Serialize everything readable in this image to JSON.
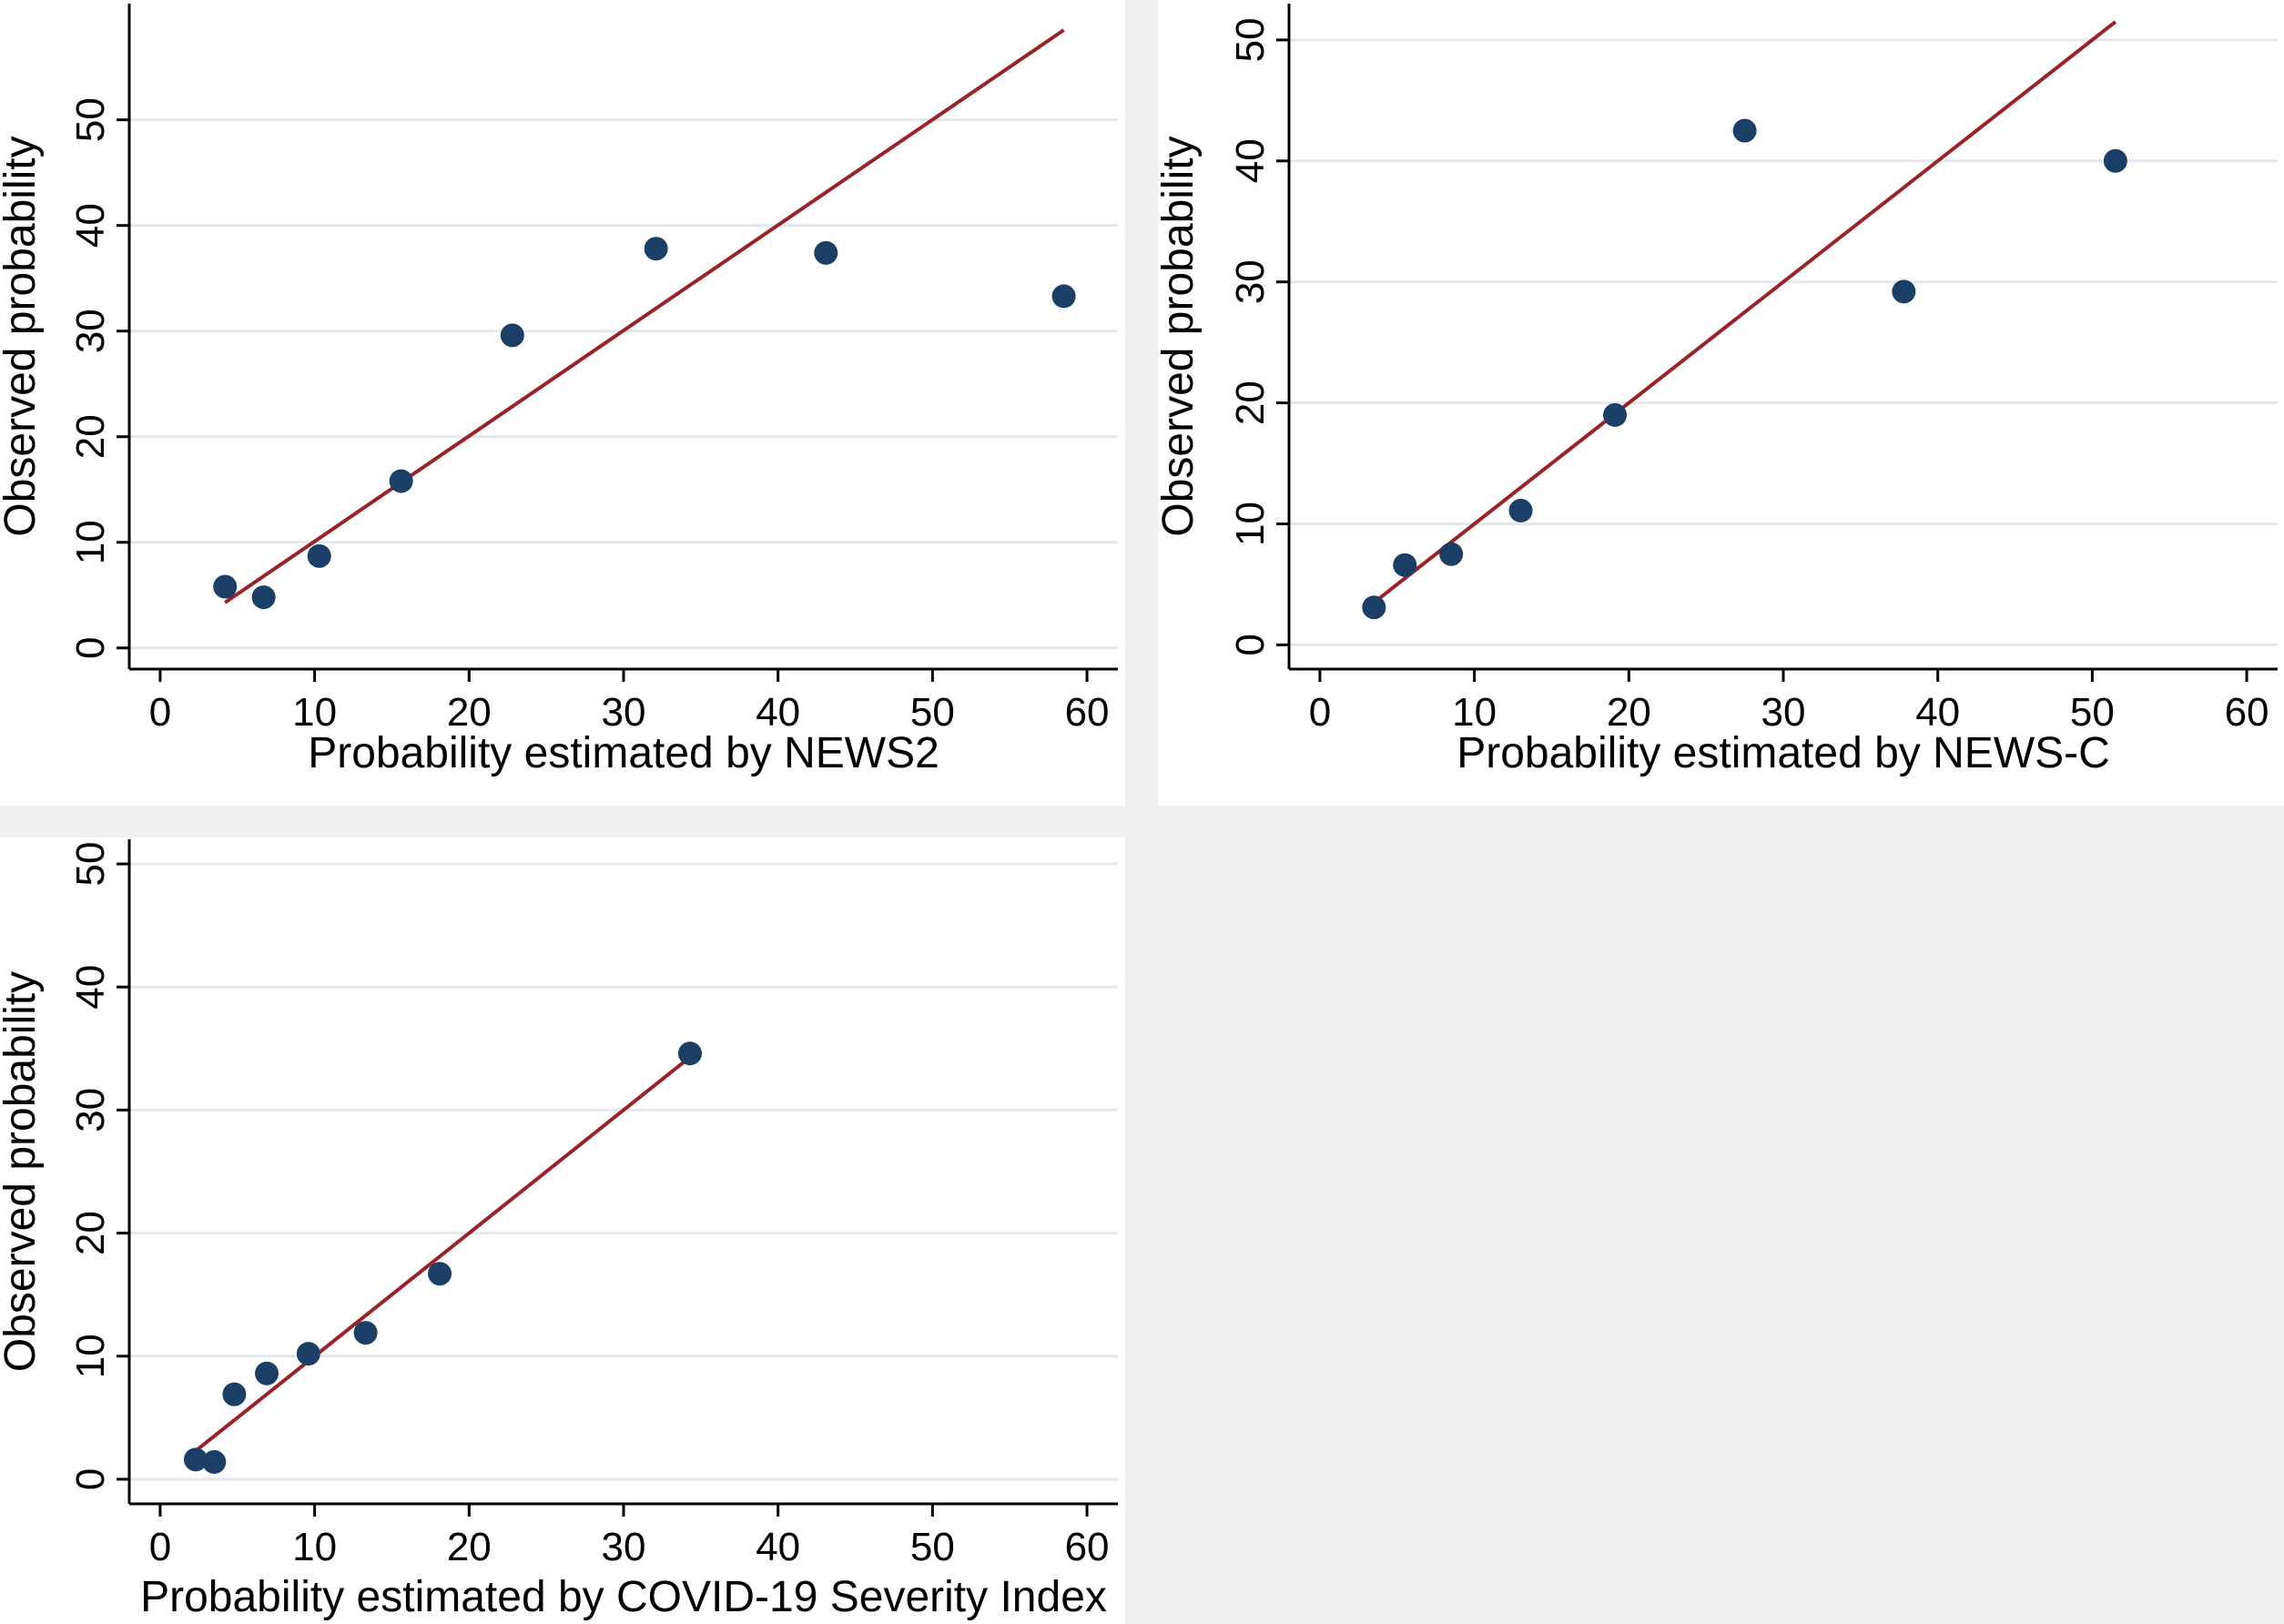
{
  "colors": {
    "panel_background": "#ffffff",
    "figure_background": "#efefef",
    "grid": "#e3e8ec",
    "axis": "#000000",
    "marker": "#1b3f66",
    "fit_line": "#9b2226"
  },
  "chart_data": [
    {
      "type": "scatter",
      "title": "",
      "xlabel": "Probability estimated by NEWS2",
      "ylabel": "Observed probability",
      "xlim": [
        -2,
        62
      ],
      "ylim": [
        -2,
        61
      ],
      "xticks": [
        0,
        10,
        20,
        30,
        40,
        50,
        60
      ],
      "yticks": [
        0,
        10,
        20,
        30,
        40,
        50
      ],
      "grid": true,
      "legend": "none",
      "points": [
        {
          "x": 4.2,
          "y": 5.8
        },
        {
          "x": 6.7,
          "y": 4.8
        },
        {
          "x": 10.3,
          "y": 8.7
        },
        {
          "x": 15.6,
          "y": 15.8
        },
        {
          "x": 22.8,
          "y": 29.6
        },
        {
          "x": 32.1,
          "y": 37.8
        },
        {
          "x": 43.1,
          "y": 37.4
        },
        {
          "x": 58.5,
          "y": 33.3
        }
      ],
      "fit_line": {
        "x": [
          4.2,
          58.5
        ],
        "y": [
          4.3,
          58.5
        ]
      }
    },
    {
      "type": "scatter",
      "title": "",
      "xlabel": "Probability estimated by NEWS-C",
      "ylabel": "Observed probability",
      "xlim": [
        -2,
        62
      ],
      "ylim": [
        -2,
        53
      ],
      "xticks": [
        0,
        10,
        20,
        30,
        40,
        50,
        60
      ],
      "yticks": [
        0,
        10,
        20,
        30,
        40,
        50
      ],
      "grid": true,
      "legend": "none",
      "points": [
        {
          "x": 3.5,
          "y": 3.1
        },
        {
          "x": 5.5,
          "y": 6.6
        },
        {
          "x": 8.5,
          "y": 7.5
        },
        {
          "x": 13.0,
          "y": 11.1
        },
        {
          "x": 19.1,
          "y": 19.0
        },
        {
          "x": 27.5,
          "y": 42.5
        },
        {
          "x": 37.8,
          "y": 29.2
        },
        {
          "x": 51.5,
          "y": 40.0
        }
      ],
      "fit_line": {
        "x": [
          3.5,
          51.5
        ],
        "y": [
          3.5,
          51.5
        ]
      }
    },
    {
      "type": "scatter",
      "title": "",
      "xlabel": "Probability estimated by COVID-19 Severity Index",
      "ylabel": "Observed probability",
      "xlim": [
        -2,
        62
      ],
      "ylim": [
        -2,
        52
      ],
      "xticks": [
        0,
        10,
        20,
        30,
        40,
        50,
        60
      ],
      "yticks": [
        0,
        10,
        20,
        30,
        40,
        50
      ],
      "grid": true,
      "legend": "none",
      "points": [
        {
          "x": 2.3,
          "y": 1.6
        },
        {
          "x": 3.5,
          "y": 1.4
        },
        {
          "x": 4.8,
          "y": 6.9
        },
        {
          "x": 6.9,
          "y": 8.6
        },
        {
          "x": 9.6,
          "y": 10.2
        },
        {
          "x": 13.3,
          "y": 11.9
        },
        {
          "x": 18.1,
          "y": 16.7
        },
        {
          "x": 34.3,
          "y": 34.6
        }
      ],
      "fit_line": {
        "x": [
          2.3,
          34.3
        ],
        "y": [
          2.3,
          34.3
        ]
      }
    }
  ]
}
